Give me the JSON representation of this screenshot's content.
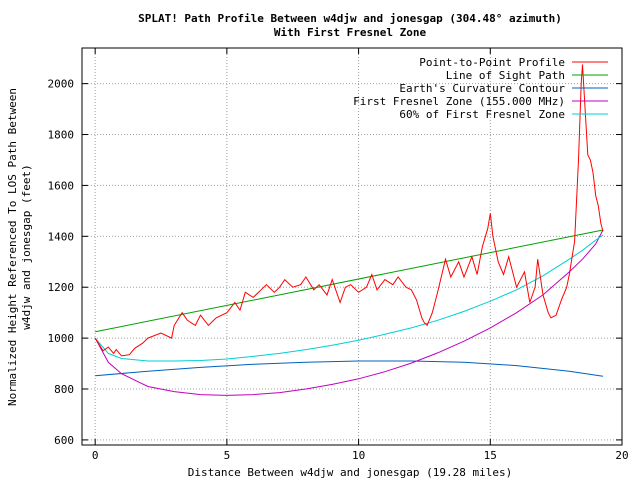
{
  "chart_data": {
    "type": "line",
    "title_lines": [
      "SPLAT! Path Profile Between w4djw and jonesgap (304.48° azimuth)",
      "With First Fresnel Zone"
    ],
    "xlabel": "Distance Between w4djw and jonesgap (19.28 miles)",
    "ylabel_lines": [
      "Normalized Height Referenced To LOS Path Between",
      "w4djw and jonesgap (feet)"
    ],
    "xlim": [
      -0.5,
      20
    ],
    "ylim": [
      580,
      2140
    ],
    "x_ticks": [
      0,
      5,
      10,
      15,
      20
    ],
    "y_ticks": [
      600,
      800,
      1000,
      1200,
      1400,
      1600,
      1800,
      2000
    ],
    "grid": true,
    "legend_position": "top-right",
    "series": [
      {
        "name": "Point-to-Point Profile",
        "color": "#ff0000",
        "x": [
          0,
          0.3,
          0.5,
          0.7,
          0.8,
          1.0,
          1.3,
          1.5,
          1.8,
          2.0,
          2.5,
          2.9,
          3.0,
          3.3,
          3.5,
          3.8,
          4.0,
          4.3,
          4.6,
          5.0,
          5.3,
          5.5,
          5.7,
          6.0,
          6.3,
          6.5,
          6.8,
          7.0,
          7.2,
          7.5,
          7.8,
          8.0,
          8.3,
          8.5,
          8.8,
          9.0,
          9.3,
          9.5,
          9.7,
          10.0,
          10.3,
          10.5,
          10.7,
          11.0,
          11.3,
          11.5,
          11.8,
          12.0,
          12.2,
          12.4,
          12.5,
          12.6,
          12.8,
          13.0,
          13.3,
          13.5,
          13.8,
          14.0,
          14.3,
          14.5,
          14.7,
          14.9,
          15.0,
          15.1,
          15.3,
          15.5,
          15.7,
          16.0,
          16.3,
          16.5,
          16.7,
          16.8,
          17.0,
          17.2,
          17.3,
          17.5,
          17.7,
          17.9,
          18.0,
          18.2,
          18.35,
          18.45,
          18.5,
          18.6,
          18.7,
          18.8,
          18.9,
          19.0,
          19.1,
          19.2,
          19.28
        ],
        "values": [
          1000,
          950,
          965,
          940,
          955,
          930,
          935,
          960,
          980,
          1000,
          1020,
          1000,
          1050,
          1100,
          1070,
          1050,
          1090,
          1050,
          1080,
          1100,
          1140,
          1110,
          1180,
          1160,
          1190,
          1210,
          1180,
          1200,
          1230,
          1200,
          1210,
          1240,
          1190,
          1210,
          1170,
          1230,
          1140,
          1200,
          1210,
          1180,
          1200,
          1250,
          1190,
          1230,
          1210,
          1240,
          1200,
          1190,
          1150,
          1080,
          1060,
          1050,
          1100,
          1180,
          1310,
          1240,
          1300,
          1240,
          1320,
          1250,
          1360,
          1430,
          1490,
          1400,
          1300,
          1250,
          1320,
          1200,
          1260,
          1140,
          1200,
          1310,
          1170,
          1100,
          1080,
          1090,
          1150,
          1200,
          1250,
          1380,
          1700,
          2000,
          2075,
          1900,
          1720,
          1700,
          1650,
          1560,
          1520,
          1450,
          1420
        ]
      },
      {
        "name": "Line of Sight Path",
        "color": "#00a000",
        "x": [
          0,
          19.28
        ],
        "values": [
          1025,
          1425
        ]
      },
      {
        "name": "Earth's Curvature Contour",
        "color": "#0060c0",
        "x": [
          0,
          2,
          4,
          6,
          8,
          10,
          12,
          14,
          16,
          18,
          19.28
        ],
        "values": [
          852,
          870,
          885,
          897,
          905,
          910,
          910,
          905,
          892,
          870,
          850
        ]
      },
      {
        "name": "First Fresnel Zone (155.000 MHz)",
        "color": "#c000c0",
        "x": [
          0,
          0.5,
          1,
          2,
          3,
          4,
          5,
          6,
          7,
          8,
          9,
          10,
          11,
          12,
          13,
          14,
          15,
          16,
          17,
          18,
          18.5,
          19,
          19.28
        ],
        "values": [
          1000,
          905,
          860,
          810,
          790,
          778,
          775,
          778,
          786,
          800,
          818,
          840,
          868,
          902,
          942,
          988,
          1040,
          1100,
          1170,
          1260,
          1310,
          1370,
          1425
        ]
      },
      {
        "name": "60% of First Fresnel Zone",
        "color": "#00d0d0",
        "x": [
          0,
          0.5,
          1,
          2,
          3,
          4,
          5,
          6,
          7,
          8,
          9,
          10,
          11,
          12,
          13,
          14,
          15,
          16,
          17,
          18,
          18.5,
          19,
          19.28
        ],
        "values": [
          1000,
          940,
          920,
          910,
          910,
          912,
          918,
          928,
          940,
          955,
          972,
          992,
          1015,
          1040,
          1070,
          1105,
          1145,
          1190,
          1245,
          1310,
          1345,
          1385,
          1405
        ]
      }
    ]
  }
}
